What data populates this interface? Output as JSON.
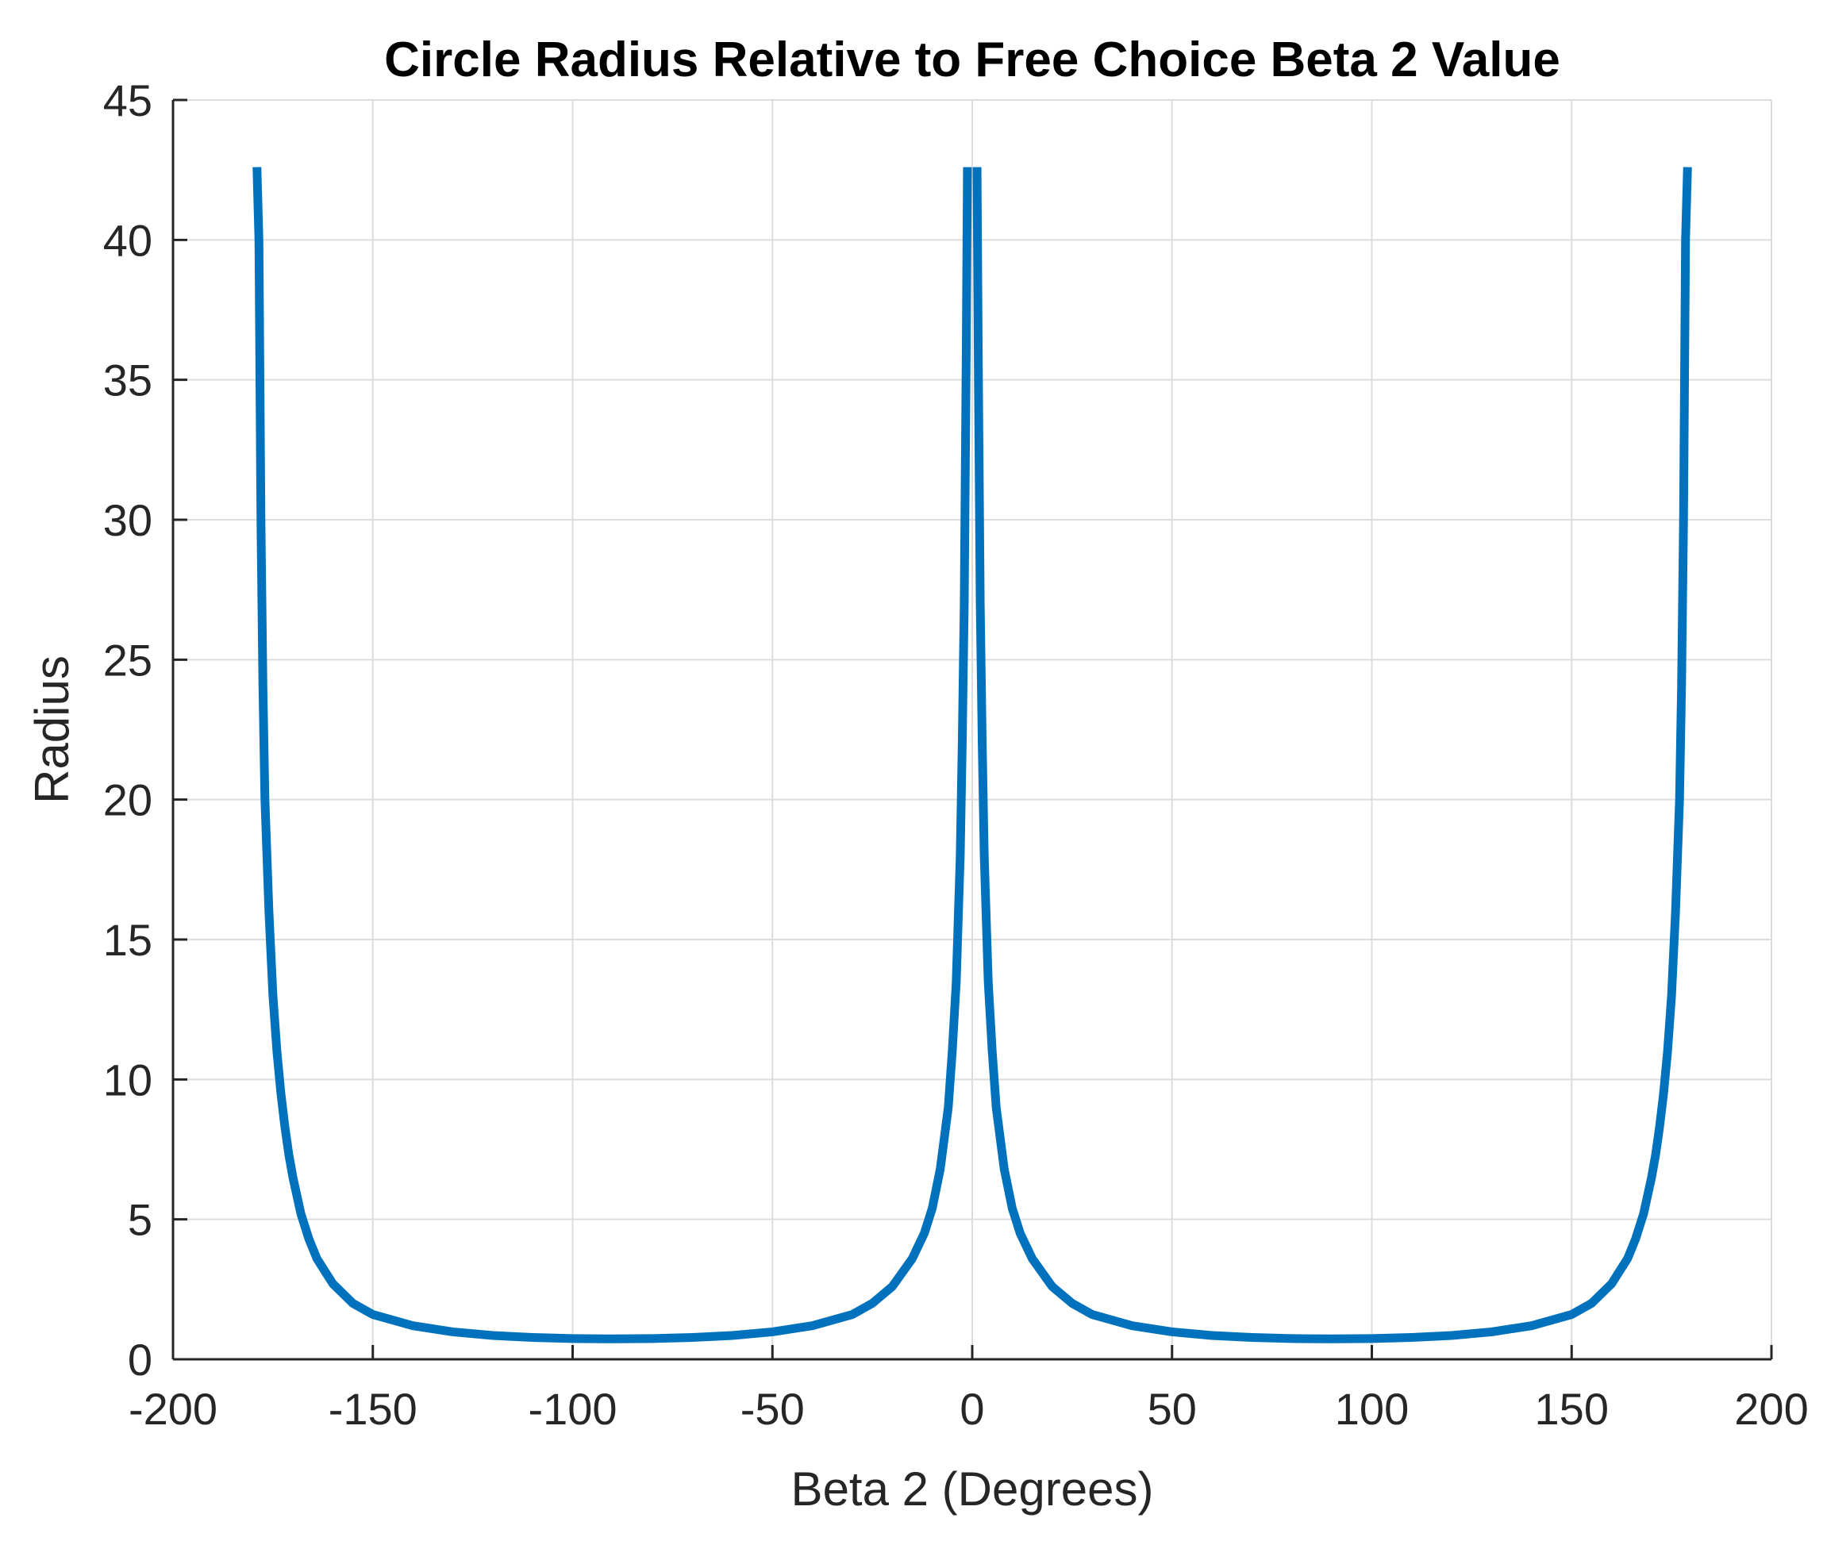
{
  "chart_data": {
    "type": "line",
    "title": "Circle Radius Relative to Free Choice Beta 2 Value",
    "xlabel": "Beta 2 (Degrees)",
    "ylabel": "Radius",
    "xlim": [
      -200,
      200
    ],
    "ylim": [
      0,
      45
    ],
    "xticks": [
      -200,
      -150,
      -100,
      -50,
      0,
      50,
      100,
      150,
      200
    ],
    "yticks": [
      0,
      5,
      10,
      15,
      20,
      25,
      30,
      35,
      40,
      45
    ],
    "xtick_labels": [
      "-200",
      "-150",
      "-100",
      "-50",
      "0",
      "50",
      "100",
      "150",
      "200"
    ],
    "ytick_labels": [
      "0",
      "5",
      "10",
      "15",
      "20",
      "25",
      "30",
      "35",
      "40",
      "45"
    ],
    "grid": true,
    "colors": {
      "line": "#0072BD",
      "grid": "#dcdcdc",
      "axis": "#262626"
    },
    "series": [
      {
        "name": "Radius",
        "segments": [
          {
            "x": [
              -179,
              -178.5,
              -178,
              -177.5,
              -177,
              -176,
              -175,
              -174,
              -173,
              -172,
              -171,
              -170,
              -168,
              -166,
              -164,
              -160,
              -155,
              -150,
              -140,
              -130,
              -120,
              -110,
              -100,
              -90,
              -80,
              -70,
              -60,
              -50,
              -40,
              -30,
              -25,
              -20,
              -15,
              -12,
              -10,
              -8,
              -6,
              -5,
              -4,
              -3,
              -2.5,
              -2,
              -1.5,
              -1.2
            ],
            "y": [
              42.6,
              40,
              30,
              24,
              20,
              16,
              13,
              11,
              9.5,
              8.3,
              7.3,
              6.5,
              5.2,
              4.3,
              3.6,
              2.7,
              2.0,
              1.6,
              1.2,
              0.98,
              0.85,
              0.78,
              0.74,
              0.73,
              0.74,
              0.78,
              0.85,
              0.98,
              1.2,
              1.6,
              2.0,
              2.6,
              3.6,
              4.5,
              5.4,
              6.8,
              9.0,
              11,
              13.5,
              18,
              22,
              27,
              36,
              42.6
            ]
          },
          {
            "x": [
              1.2,
              1.5,
              2,
              2.5,
              3,
              4,
              5,
              6,
              8,
              10,
              12,
              15,
              20,
              25,
              30,
              40,
              50,
              60,
              70,
              80,
              90,
              100,
              110,
              120,
              130,
              140,
              150,
              155,
              160,
              164,
              166,
              168,
              170,
              171,
              172,
              173,
              174,
              175,
              176,
              177,
              177.5,
              178,
              178.5,
              179
            ],
            "y": [
              42.6,
              36,
              27,
              22,
              18,
              13.5,
              11,
              9.0,
              6.8,
              5.4,
              4.5,
              3.6,
              2.6,
              2.0,
              1.6,
              1.2,
              0.98,
              0.85,
              0.78,
              0.74,
              0.73,
              0.74,
              0.78,
              0.85,
              0.98,
              1.2,
              1.6,
              2.0,
              2.7,
              3.6,
              4.3,
              5.2,
              6.5,
              7.3,
              8.3,
              9.5,
              11,
              13,
              16,
              20,
              24,
              30,
              40,
              42.6
            ]
          }
        ]
      }
    ]
  }
}
